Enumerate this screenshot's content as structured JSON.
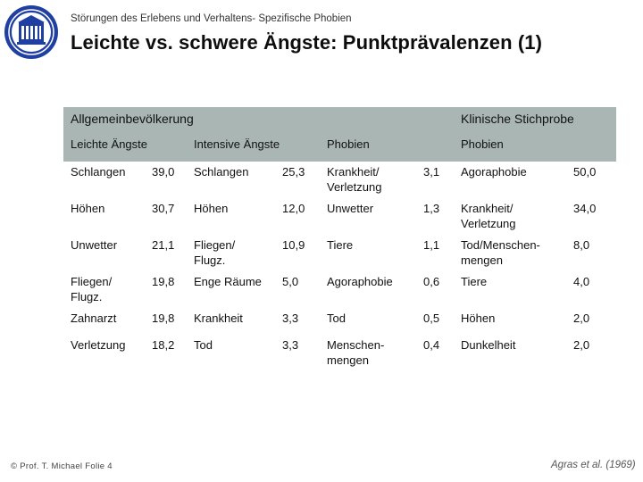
{
  "header": {
    "subtitle": "Störungen des Erlebens und Verhaltens- Spezifische Phobien",
    "title": "Leichte vs. schwere Ängste: Punktprävalenzen (1)"
  },
  "table": {
    "group_headers": [
      "Allgemeinbevölkerung",
      "Klinische Stichprobe"
    ],
    "column_headers": [
      "Leichte Ängste",
      "Intensive Ängste",
      "Phobien",
      "Phobien"
    ],
    "rows": [
      [
        [
          "Schlangen",
          "39,0"
        ],
        [
          "Schlangen",
          "25,3"
        ],
        [
          "Krankheit/ Verletzung",
          "3,1"
        ],
        [
          "Agoraphobie",
          "50,0"
        ]
      ],
      [
        [
          "Höhen",
          "30,7"
        ],
        [
          "Höhen",
          "12,0"
        ],
        [
          "Unwetter",
          "1,3"
        ],
        [
          "Krankheit/ Verletzung",
          "34,0"
        ]
      ],
      [
        [
          "Unwetter",
          "21,1"
        ],
        [
          "Fliegen/ Flugz.",
          "10,9"
        ],
        [
          "Tiere",
          "1,1"
        ],
        [
          "Tod/Menschen- mengen",
          "8,0"
        ]
      ],
      [
        [
          "Fliegen/ Flugz.",
          "19,8"
        ],
        [
          "Enge Räume",
          "5,0"
        ],
        [
          "Agoraphobie",
          "0,6"
        ],
        [
          "Tiere",
          "4,0"
        ]
      ],
      [
        [
          "Zahnarzt",
          "19,8"
        ],
        [
          "Krankheit",
          "3,3"
        ],
        [
          "Tod",
          "0,5"
        ],
        [
          "Höhen",
          "2,0"
        ]
      ],
      [
        [
          "Verletzung",
          "18,2"
        ],
        [
          "Tod",
          "3,3"
        ],
        [
          "Menschen- mengen",
          "0,4"
        ],
        [
          "Dunkelheit",
          "2,0"
        ]
      ]
    ]
  },
  "footer": {
    "left": "© Prof. T. Michael Folie 4",
    "right_authors": "Agras et al. ",
    "right_year": "(1969)"
  },
  "colors": {
    "header_band": "#a9b6b3",
    "logo": "#1f3fa3"
  },
  "icons": {
    "logo": "university-seal-logo"
  }
}
